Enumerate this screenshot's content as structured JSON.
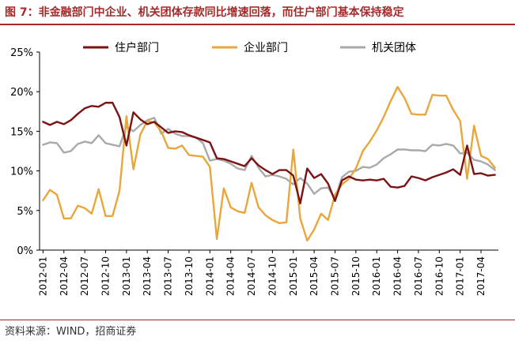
{
  "figure": {
    "title": "图 7：非金融部门中企业、机关团体存款同比增速回落，而住户部门基本保持稳定",
    "source": "资料来源：WIND，招商证券"
  },
  "chart_data": {
    "type": "line",
    "ylim": [
      0,
      25
    ],
    "yticks": [
      0,
      5,
      10,
      15,
      20,
      25
    ],
    "ytick_labels": [
      "0%",
      "5%",
      "10%",
      "15%",
      "20%",
      "25%"
    ],
    "x_tick_labels": [
      "2012-01",
      "2012-04",
      "2012-07",
      "2012-10",
      "2013-01",
      "2013-04",
      "2013-07",
      "2013-10",
      "2014-01",
      "2014-04",
      "2014-07",
      "2014-10",
      "2015-01",
      "2015-04",
      "2015-07",
      "2015-10",
      "2016-01",
      "2016-04",
      "2016-07",
      "2016-10",
      "2017-01",
      "2017-04"
    ],
    "legend_position": "top",
    "grid": false,
    "x": [
      "2012-01",
      "2012-02",
      "2012-03",
      "2012-04",
      "2012-05",
      "2012-06",
      "2012-07",
      "2012-08",
      "2012-09",
      "2012-10",
      "2012-11",
      "2012-12",
      "2013-01",
      "2013-02",
      "2013-03",
      "2013-04",
      "2013-05",
      "2013-06",
      "2013-07",
      "2013-08",
      "2013-09",
      "2013-10",
      "2013-11",
      "2013-12",
      "2014-01",
      "2014-02",
      "2014-03",
      "2014-04",
      "2014-05",
      "2014-06",
      "2014-07",
      "2014-08",
      "2014-09",
      "2014-10",
      "2014-11",
      "2014-12",
      "2015-01",
      "2015-02",
      "2015-03",
      "2015-04",
      "2015-05",
      "2015-06",
      "2015-07",
      "2015-08",
      "2015-09",
      "2015-10",
      "2015-11",
      "2015-12",
      "2016-01",
      "2016-02",
      "2016-03",
      "2016-04",
      "2016-05",
      "2016-06",
      "2016-07",
      "2016-08",
      "2016-09",
      "2016-10",
      "2016-11",
      "2016-12",
      "2017-01",
      "2017-02",
      "2017-03",
      "2017-04",
      "2017-05",
      "2017-06"
    ],
    "series": [
      {
        "name": "住户部门",
        "color": "#7b1214",
        "values": [
          16.2,
          15.8,
          16.2,
          15.9,
          16.4,
          17.2,
          17.9,
          18.2,
          18.1,
          18.6,
          18.6,
          16.8,
          13.2,
          17.4,
          16.5,
          15.9,
          16.2,
          15.5,
          14.8,
          15.0,
          14.9,
          14.5,
          14.2,
          13.9,
          13.6,
          11.6,
          11.5,
          11.2,
          10.9,
          10.6,
          11.6,
          10.7,
          10.1,
          9.6,
          10.1,
          10.1,
          9.4,
          5.9,
          10.3,
          9.1,
          9.6,
          8.4,
          6.2,
          8.8,
          9.3,
          8.9,
          8.8,
          8.9,
          8.8,
          9.0,
          8.0,
          7.9,
          8.1,
          9.3,
          9.1,
          8.8,
          9.2,
          9.5,
          9.8,
          10.2,
          9.5,
          13.2,
          9.6,
          9.7,
          9.4,
          9.5
        ]
      },
      {
        "name": "企业部门",
        "color": "#e8a73a",
        "values": [
          6.3,
          7.6,
          7.0,
          4.0,
          4.0,
          5.6,
          5.3,
          4.6,
          7.7,
          4.3,
          4.3,
          7.5,
          16.9,
          10.2,
          14.6,
          16.3,
          16.1,
          15.0,
          12.9,
          12.8,
          13.2,
          12.0,
          11.9,
          11.8,
          10.5,
          1.4,
          7.8,
          5.4,
          4.9,
          4.7,
          8.5,
          5.4,
          4.4,
          3.8,
          3.4,
          3.5,
          12.7,
          4.0,
          1.2,
          2.6,
          4.6,
          3.8,
          7.0,
          8.3,
          9.0,
          10.3,
          12.5,
          13.7,
          15.1,
          16.8,
          18.8,
          20.6,
          19.2,
          17.2,
          17.1,
          17.1,
          19.6,
          19.5,
          19.5,
          17.7,
          16.3,
          9.0,
          15.7,
          11.9,
          11.5,
          10.4
        ]
      },
      {
        "name": "机关团体",
        "color": "#a9a9a9",
        "values": [
          13.3,
          13.6,
          13.5,
          12.3,
          12.5,
          13.4,
          13.7,
          13.5,
          14.5,
          13.5,
          13.3,
          13.1,
          15.6,
          15.0,
          15.8,
          16.4,
          16.7,
          14.7,
          15.3,
          14.7,
          14.4,
          14.4,
          14.2,
          13.5,
          11.3,
          11.5,
          11.3,
          10.9,
          10.3,
          10.1,
          11.9,
          10.4,
          9.3,
          9.5,
          9.3,
          9.0,
          8.3,
          9.1,
          8.4,
          7.1,
          7.8,
          7.9,
          6.5,
          9.2,
          9.9,
          10.0,
          10.5,
          10.4,
          10.8,
          11.6,
          12.1,
          12.7,
          12.7,
          12.6,
          12.6,
          12.5,
          13.3,
          13.2,
          13.4,
          13.2,
          12.2,
          12.3,
          11.4,
          11.2,
          10.8,
          10.1
        ]
      }
    ]
  }
}
